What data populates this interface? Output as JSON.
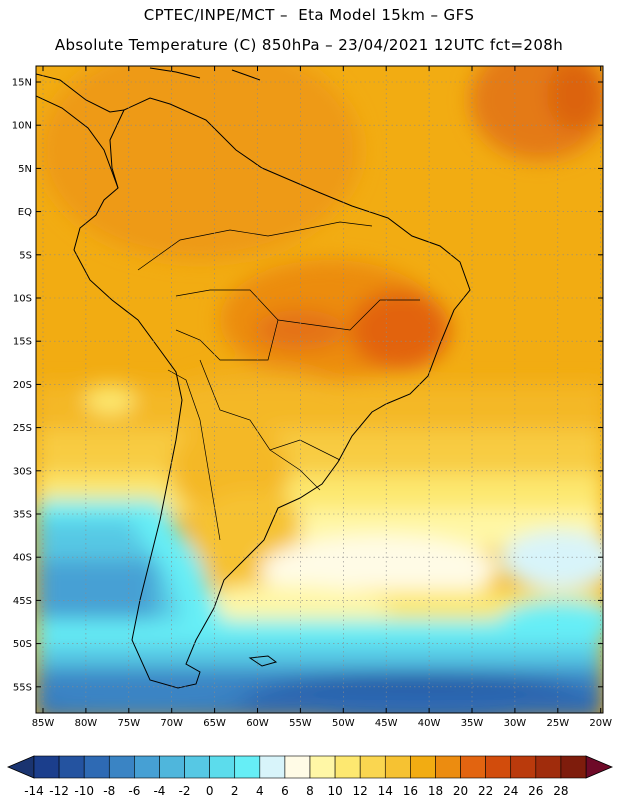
{
  "header": {
    "line1": "CPTEC/INPE/MCT –  Eta Model 15km – GFS",
    "line2": "Absolute Temperature (C) 850hPa – 23/04/2021 12UTC fct=208h"
  },
  "lat_labels": [
    "15N",
    "10N",
    "5N",
    "EQ",
    "5S",
    "10S",
    "15S",
    "20S",
    "25S",
    "30S",
    "35S",
    "40S",
    "45S",
    "50S",
    "55S"
  ],
  "lon_labels": [
    "85W",
    "80W",
    "75W",
    "70W",
    "65W",
    "60W",
    "55W",
    "50W",
    "45W",
    "40W",
    "35W",
    "30W",
    "25W",
    "20W"
  ],
  "colorbar": {
    "labels": [
      "-14",
      "-12",
      "-10",
      "-8",
      "-6",
      "-4",
      "-2",
      "0",
      "2",
      "4",
      "6",
      "8",
      "10",
      "12",
      "14",
      "16",
      "18",
      "20",
      "22",
      "24",
      "26",
      "28"
    ],
    "colors": [
      "#1b3e8c",
      "#2453a0",
      "#2e6ab4",
      "#3a84c4",
      "#46a0d4",
      "#4fb6dc",
      "#56c8e4",
      "#5cdcec",
      "#66eef6",
      "#d8f4fa",
      "#fffbe6",
      "#fff7a6",
      "#fde870",
      "#fad650",
      "#f6c232",
      "#f2ac12",
      "#ec8c10",
      "#e26410",
      "#d24c0c",
      "#ba3a0c",
      "#a02c0c",
      "#7e1c0c"
    ],
    "left_arrow_color": "#1a3470",
    "right_arrow_color": "#6e0a28"
  }
}
